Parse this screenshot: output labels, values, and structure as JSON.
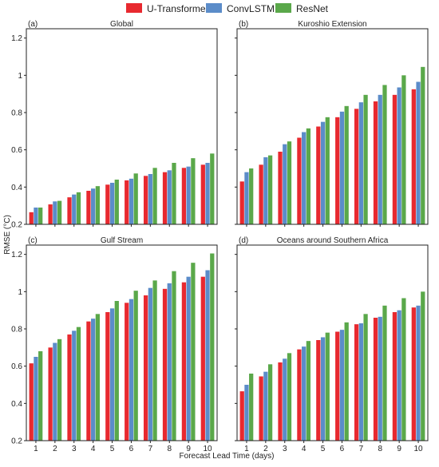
{
  "chart_data": {
    "type": "bar",
    "legend": {
      "placement": "top-center",
      "entries": [
        {
          "name": "U-Transformer",
          "color": "#e8292f"
        },
        {
          "name": "ConvLSTM",
          "color": "#5b8cc9"
        },
        {
          "name": "ResNet",
          "color": "#5aa84a"
        }
      ]
    },
    "xlabel": "Forecast Lead Time (days)",
    "ylabel": "RMSE (°C)",
    "categories": [
      "1",
      "2",
      "3",
      "4",
      "5",
      "6",
      "7",
      "8",
      "9",
      "10"
    ],
    "panels": [
      {
        "tag": "(a)",
        "title": "Global",
        "ylim": [
          0.2,
          1.25
        ],
        "yticks": [
          0.2,
          0.4,
          0.6,
          0.8,
          1.0,
          1.2
        ],
        "ytick_labels": [
          "0.2",
          "0.4",
          "0.6",
          "0.8",
          "1",
          "1.2"
        ],
        "show_yticks": true,
        "show_xticks": false,
        "series": [
          {
            "name": "U-Transformer",
            "values": [
              0.265,
              0.307,
              0.345,
              0.38,
              0.413,
              0.436,
              0.46,
              0.48,
              0.503,
              0.52
            ]
          },
          {
            "name": "ConvLSTM",
            "values": [
              0.29,
              0.323,
              0.36,
              0.392,
              0.423,
              0.445,
              0.47,
              0.49,
              0.51,
              0.53
            ]
          },
          {
            "name": "ResNet",
            "values": [
              0.29,
              0.326,
              0.372,
              0.405,
              0.44,
              0.473,
              0.503,
              0.53,
              0.555,
              0.58
            ]
          }
        ]
      },
      {
        "tag": "(b)",
        "title": "Kuroshio Extension",
        "ylim": [
          0.2,
          1.25
        ],
        "yticks": [
          0.2,
          0.4,
          0.6,
          0.8,
          1.0,
          1.2
        ],
        "ytick_labels": [
          "0.2",
          "0.4",
          "0.6",
          "0.8",
          "1",
          "1.2"
        ],
        "show_yticks": false,
        "show_xticks": false,
        "series": [
          {
            "name": "U-Transformer",
            "values": [
              0.43,
              0.52,
              0.59,
              0.665,
              0.725,
              0.775,
              0.82,
              0.86,
              0.895,
              0.925
            ]
          },
          {
            "name": "ConvLSTM",
            "values": [
              0.48,
              0.56,
              0.63,
              0.695,
              0.75,
              0.805,
              0.855,
              0.895,
              0.935,
              0.965
            ]
          },
          {
            "name": "ResNet",
            "values": [
              0.5,
              0.57,
              0.645,
              0.715,
              0.775,
              0.835,
              0.895,
              0.948,
              1.0,
              1.045
            ]
          }
        ]
      },
      {
        "tag": "(c)",
        "title": "Gulf Stream",
        "ylim": [
          0.2,
          1.25
        ],
        "yticks": [
          0.2,
          0.4,
          0.6,
          0.8,
          1.0,
          1.2
        ],
        "ytick_labels": [
          "0.2",
          "0.4",
          "0.6",
          "0.8",
          "1",
          "1.2"
        ],
        "show_yticks": true,
        "show_xticks": true,
        "series": [
          {
            "name": "U-Transformer",
            "values": [
              0.615,
              0.7,
              0.77,
              0.84,
              0.89,
              0.94,
              0.98,
              1.015,
              1.05,
              1.08
            ]
          },
          {
            "name": "ConvLSTM",
            "values": [
              0.65,
              0.725,
              0.79,
              0.855,
              0.91,
              0.96,
              1.02,
              1.045,
              1.08,
              1.115
            ]
          },
          {
            "name": "ResNet",
            "values": [
              0.68,
              0.745,
              0.81,
              0.88,
              0.95,
              1.005,
              1.06,
              1.11,
              1.155,
              1.205
            ]
          }
        ]
      },
      {
        "tag": "(d)",
        "title": "Oceans around Southern Africa",
        "ylim": [
          0.2,
          1.25
        ],
        "yticks": [
          0.2,
          0.4,
          0.6,
          0.8,
          1.0,
          1.2
        ],
        "ytick_labels": [
          "0.2",
          "0.4",
          "0.6",
          "0.8",
          "1",
          "1.2"
        ],
        "show_yticks": false,
        "show_xticks": true,
        "series": [
          {
            "name": "U-Transformer",
            "values": [
              0.465,
              0.545,
              0.62,
              0.69,
              0.74,
              0.785,
              0.825,
              0.86,
              0.89,
              0.915
            ]
          },
          {
            "name": "ConvLSTM",
            "values": [
              0.5,
              0.57,
              0.64,
              0.705,
              0.755,
              0.795,
              0.83,
              0.865,
              0.9,
              0.925
            ]
          },
          {
            "name": "ResNet",
            "values": [
              0.56,
              0.61,
              0.67,
              0.735,
              0.78,
              0.835,
              0.88,
              0.925,
              0.965,
              1.0
            ]
          }
        ]
      }
    ]
  }
}
